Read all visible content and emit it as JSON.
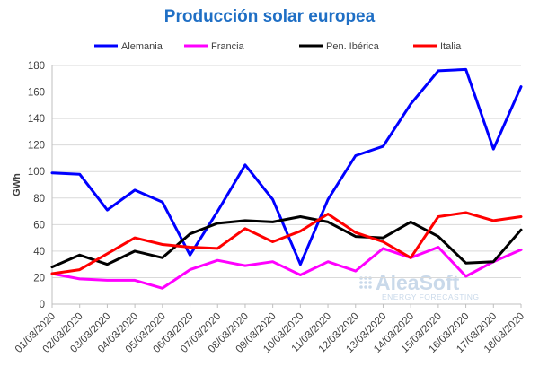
{
  "chart_data": {
    "type": "line",
    "title": "Producción solar europea",
    "xlabel": "",
    "ylabel": "GWh",
    "ylim": [
      0,
      180
    ],
    "yticks": [
      0,
      20,
      40,
      60,
      80,
      100,
      120,
      140,
      160,
      180
    ],
    "grid": true,
    "legend_position": "top",
    "categories": [
      "01/03/2020",
      "02/03/2020",
      "03/03/2020",
      "04/03/2020",
      "05/03/2020",
      "06/03/2020",
      "07/03/2020",
      "08/03/2020",
      "09/03/2020",
      "10/03/2020",
      "11/03/2020",
      "12/03/2020",
      "13/03/2020",
      "14/03/2020",
      "15/03/2020",
      "16/03/2020",
      "17/03/2020",
      "18/03/2020"
    ],
    "series": [
      {
        "name": "Alemania",
        "color": "#0000ff",
        "values": [
          99,
          98,
          71,
          86,
          77,
          37,
          70,
          105,
          79,
          30,
          79,
          112,
          119,
          151,
          176,
          177,
          117,
          164
        ]
      },
      {
        "name": "Francia",
        "color": "#ff00ff",
        "values": [
          23,
          19,
          18,
          18,
          12,
          26,
          33,
          29,
          32,
          22,
          32,
          25,
          42,
          35,
          43,
          21,
          32,
          41
        ]
      },
      {
        "name": "Pen. Ibérica",
        "color": "#000000",
        "values": [
          28,
          37,
          30,
          40,
          35,
          53,
          61,
          63,
          62,
          66,
          62,
          51,
          50,
          62,
          51,
          31,
          32,
          56
        ]
      },
      {
        "name": "Italia",
        "color": "#ff0000",
        "values": [
          23,
          26,
          38,
          50,
          45,
          43,
          42,
          57,
          47,
          55,
          68,
          54,
          47,
          35,
          66,
          69,
          63,
          66
        ]
      }
    ]
  },
  "watermark": {
    "name": "AleaSoft",
    "subtitle": "ENERGY FORECASTING"
  }
}
